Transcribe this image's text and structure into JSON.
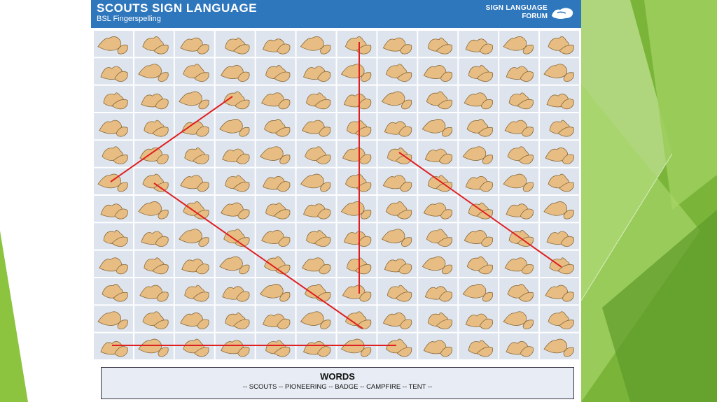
{
  "header": {
    "title": "SCOUTS SIGN LANGUAGE",
    "subtitle": "BSL Fingerspelling"
  },
  "logo": {
    "line1": "SIGN LANGUAGE",
    "line2": "FORUM",
    "icon": "hands-logo-icon"
  },
  "grid": {
    "rows": 12,
    "cols": 12,
    "cell_icon": "hand-sign-icon"
  },
  "words_box": {
    "title": "WORDS",
    "list": "-- SCOUTS -- PIONEERING -- BADGE -- CAMPFIRE -- TENT --"
  },
  "colors": {
    "header_bg": "#2f77bd",
    "cell_bg": "#dde4ee",
    "hand_skin": "#e7bd83",
    "line_red": "#e02020",
    "deco_green": "#7ab53a"
  }
}
